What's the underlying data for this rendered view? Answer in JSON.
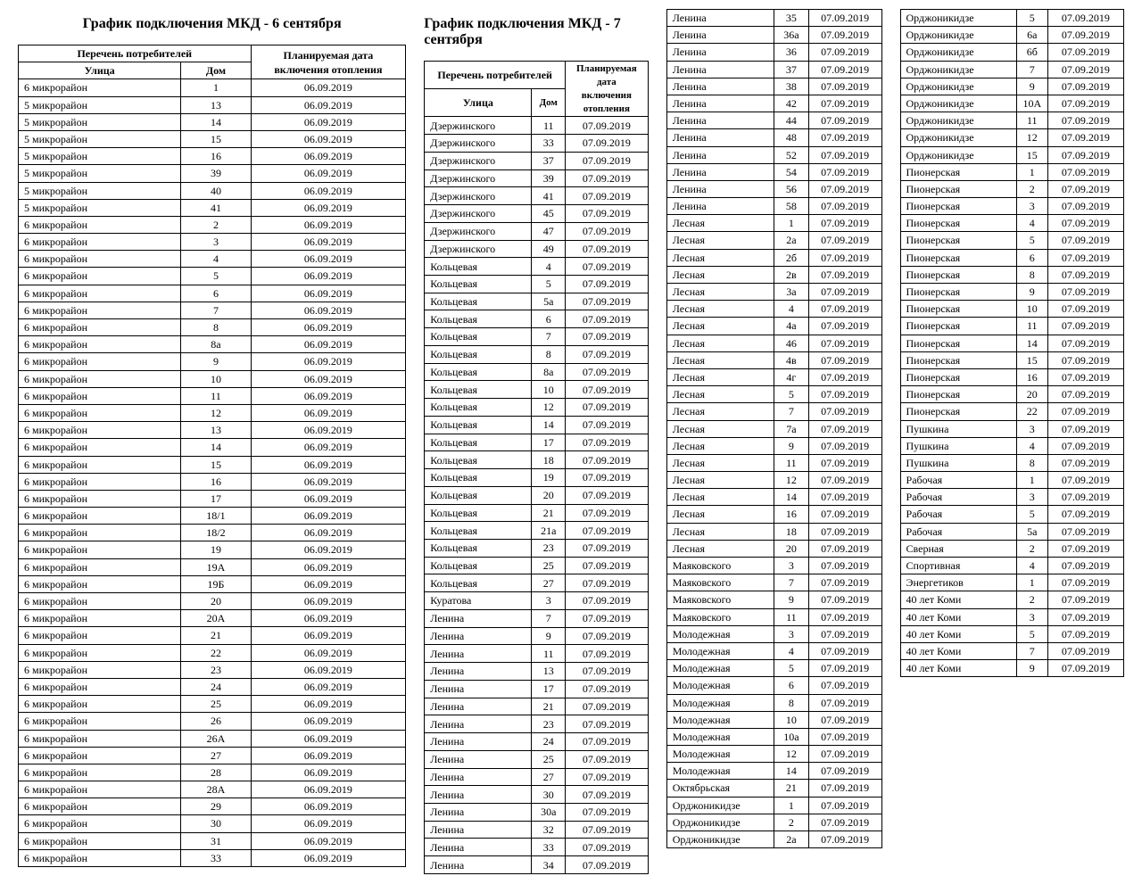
{
  "table1": {
    "title": "График подключения МКД - 6 сентября",
    "header_group": "Перечень потребителей",
    "header_date": "Планируемая дата включения отопления",
    "header_street": "Улица",
    "header_house": "Дом",
    "column_widths": [
      "42%",
      "18%",
      "40%"
    ],
    "title_fontsize": 16,
    "cell_fontsize": 12,
    "rows": [
      [
        "6 микрорайон",
        "1",
        "06.09.2019"
      ],
      [
        "5 микрорайон",
        "13",
        "06.09.2019"
      ],
      [
        "5 микрорайон",
        "14",
        "06.09.2019"
      ],
      [
        "5 микрорайон",
        "15",
        "06.09.2019"
      ],
      [
        "5 микрорайон",
        "16",
        "06.09.2019"
      ],
      [
        "5 микрорайон",
        "39",
        "06.09.2019"
      ],
      [
        "5 микрорайон",
        "40",
        "06.09.2019"
      ],
      [
        "5 микрорайон",
        "41",
        "06.09.2019"
      ],
      [
        "6 микрорайон",
        "2",
        "06.09.2019"
      ],
      [
        "6 микрорайон",
        "3",
        "06.09.2019"
      ],
      [
        "6 микрорайон",
        "4",
        "06.09.2019"
      ],
      [
        "6 микрорайон",
        "5",
        "06.09.2019"
      ],
      [
        "6 микрорайон",
        "6",
        "06.09.2019"
      ],
      [
        "6 микрорайон",
        "7",
        "06.09.2019"
      ],
      [
        "6 микрорайон",
        "8",
        "06.09.2019"
      ],
      [
        "6 микрорайон",
        "8а",
        "06.09.2019"
      ],
      [
        "6 микрорайон",
        "9",
        "06.09.2019"
      ],
      [
        "6 микрорайон",
        "10",
        "06.09.2019"
      ],
      [
        "6 микрорайон",
        "11",
        "06.09.2019"
      ],
      [
        "6 микрорайон",
        "12",
        "06.09.2019"
      ],
      [
        "6 микрорайон",
        "13",
        "06.09.2019"
      ],
      [
        "6 микрорайон",
        "14",
        "06.09.2019"
      ],
      [
        "6 микрорайон",
        "15",
        "06.09.2019"
      ],
      [
        "6 микрорайон",
        "16",
        "06.09.2019"
      ],
      [
        "6 микрорайон",
        "17",
        "06.09.2019"
      ],
      [
        "6 микрорайон",
        "18/1",
        "06.09.2019"
      ],
      [
        "6 микрорайон",
        "18/2",
        "06.09.2019"
      ],
      [
        "6 микрорайон",
        "19",
        "06.09.2019"
      ],
      [
        "6 микрорайон",
        "19А",
        "06.09.2019"
      ],
      [
        "6 микрорайон",
        "19Б",
        "06.09.2019"
      ],
      [
        "6 микрорайон",
        "20",
        "06.09.2019"
      ],
      [
        "6 микрорайон",
        "20А",
        "06.09.2019"
      ],
      [
        "6 микрорайон",
        "21",
        "06.09.2019"
      ],
      [
        "6 микрорайон",
        "22",
        "06.09.2019"
      ],
      [
        "6 микрорайон",
        "23",
        "06.09.2019"
      ],
      [
        "6 микрорайон",
        "24",
        "06.09.2019"
      ],
      [
        "6 микрорайон",
        "25",
        "06.09.2019"
      ],
      [
        "6 микрорайон",
        "26",
        "06.09.2019"
      ],
      [
        "6 микрорайон",
        "26А",
        "06.09.2019"
      ],
      [
        "6 микрорайон",
        "27",
        "06.09.2019"
      ],
      [
        "6 микрорайон",
        "28",
        "06.09.2019"
      ],
      [
        "6 микрорайон",
        "28А",
        "06.09.2019"
      ],
      [
        "6 микрорайон",
        "29",
        "06.09.2019"
      ],
      [
        "6 микрорайон",
        "30",
        "06.09.2019"
      ],
      [
        "6 микрорайон",
        "31",
        "06.09.2019"
      ],
      [
        "6 микрорайон",
        "33",
        "06.09.2019"
      ]
    ]
  },
  "table2": {
    "title": "График подключения МКД - 7 сентября",
    "header_group": "Перечень потребителей",
    "header_date": "Планируемая дата включения отопления",
    "header_street": "Улица",
    "header_house": "Дом",
    "column_widths": [
      "48%",
      "15%",
      "37%"
    ],
    "rows": [
      [
        "Дзержинского",
        "11",
        "07.09.2019"
      ],
      [
        "Дзержинского",
        "33",
        "07.09.2019"
      ],
      [
        "Дзержинского",
        "37",
        "07.09.2019"
      ],
      [
        "Дзержинского",
        "39",
        "07.09.2019"
      ],
      [
        "Дзержинского",
        "41",
        "07.09.2019"
      ],
      [
        "Дзержинского",
        "45",
        "07.09.2019"
      ],
      [
        "Дзержинского",
        "47",
        "07.09.2019"
      ],
      [
        "Дзержинского",
        "49",
        "07.09.2019"
      ],
      [
        "Кольцевая",
        "4",
        "07.09.2019"
      ],
      [
        "Кольцевая",
        "5",
        "07.09.2019"
      ],
      [
        "Кольцевая",
        "5а",
        "07.09.2019"
      ],
      [
        "Кольцевая",
        "6",
        "07.09.2019"
      ],
      [
        "Кольцевая",
        "7",
        "07.09.2019"
      ],
      [
        "Кольцевая",
        "8",
        "07.09.2019"
      ],
      [
        "Кольцевая",
        "8а",
        "07.09.2019"
      ],
      [
        "Кольцевая",
        "10",
        "07.09.2019"
      ],
      [
        "Кольцевая",
        "12",
        "07.09.2019"
      ],
      [
        "Кольцевая",
        "14",
        "07.09.2019"
      ],
      [
        "Кольцевая",
        "17",
        "07.09.2019"
      ],
      [
        "Кольцевая",
        "18",
        "07.09.2019"
      ],
      [
        "Кольцевая",
        "19",
        "07.09.2019"
      ],
      [
        "Кольцевая",
        "20",
        "07.09.2019"
      ],
      [
        "Кольцевая",
        "21",
        "07.09.2019"
      ],
      [
        "Кольцевая",
        "21а",
        "07.09.2019"
      ],
      [
        "Кольцевая",
        "23",
        "07.09.2019"
      ],
      [
        "Кольцевая",
        "25",
        "07.09.2019"
      ],
      [
        "Кольцевая",
        "27",
        "07.09.2019"
      ],
      [
        "Куратова",
        "3",
        "07.09.2019"
      ],
      [
        "Ленина",
        "7",
        "07.09.2019"
      ],
      [
        "Ленина",
        "9",
        "07.09.2019"
      ],
      [
        "Ленина",
        "11",
        "07.09.2019"
      ],
      [
        "Ленина",
        "13",
        "07.09.2019"
      ],
      [
        "Ленина",
        "17",
        "07.09.2019"
      ],
      [
        "Ленина",
        "21",
        "07.09.2019"
      ],
      [
        "Ленина",
        "23",
        "07.09.2019"
      ],
      [
        "Ленина",
        "24",
        "07.09.2019"
      ],
      [
        "Ленина",
        "25",
        "07.09.2019"
      ],
      [
        "Ленина",
        "27",
        "07.09.2019"
      ],
      [
        "Ленина",
        "30",
        "07.09.2019"
      ],
      [
        "Ленина",
        "30а",
        "07.09.2019"
      ],
      [
        "Ленина",
        "32",
        "07.09.2019"
      ],
      [
        "Ленина",
        "33",
        "07.09.2019"
      ],
      [
        "Ленина",
        "34",
        "07.09.2019"
      ]
    ]
  },
  "table3": {
    "column_widths": [
      "50%",
      "16%",
      "34%"
    ],
    "rows": [
      [
        "Ленина",
        "35",
        "07.09.2019"
      ],
      [
        "Ленина",
        "36а",
        "07.09.2019"
      ],
      [
        "Ленина",
        "36",
        "07.09.2019"
      ],
      [
        "Ленина",
        "37",
        "07.09.2019"
      ],
      [
        "Ленина",
        "38",
        "07.09.2019"
      ],
      [
        "Ленина",
        "42",
        "07.09.2019"
      ],
      [
        "Ленина",
        "44",
        "07.09.2019"
      ],
      [
        "Ленина",
        "48",
        "07.09.2019"
      ],
      [
        "Ленина",
        "52",
        "07.09.2019"
      ],
      [
        "Ленина",
        "54",
        "07.09.2019"
      ],
      [
        "Ленина",
        "56",
        "07.09.2019"
      ],
      [
        "Ленина",
        "58",
        "07.09.2019"
      ],
      [
        "Лесная",
        "1",
        "07.09.2019"
      ],
      [
        "Лесная",
        "2а",
        "07.09.2019"
      ],
      [
        "Лесная",
        "2б",
        "07.09.2019"
      ],
      [
        "Лесная",
        "2в",
        "07.09.2019"
      ],
      [
        "Лесная",
        "3а",
        "07.09.2019"
      ],
      [
        "Лесная",
        "4",
        "07.09.2019"
      ],
      [
        "Лесная",
        "4а",
        "07.09.2019"
      ],
      [
        "Лесная",
        "46",
        "07.09.2019"
      ],
      [
        "Лесная",
        "4в",
        "07.09.2019"
      ],
      [
        "Лесная",
        "4г",
        "07.09.2019"
      ],
      [
        "Лесная",
        "5",
        "07.09.2019"
      ],
      [
        "Лесная",
        "7",
        "07.09.2019"
      ],
      [
        "Лесная",
        "7а",
        "07.09.2019"
      ],
      [
        "Лесная",
        "9",
        "07.09.2019"
      ],
      [
        "Лесная",
        "11",
        "07.09.2019"
      ],
      [
        "Лесная",
        "12",
        "07.09.2019"
      ],
      [
        "Лесная",
        "14",
        "07.09.2019"
      ],
      [
        "Лесная",
        "16",
        "07.09.2019"
      ],
      [
        "Лесная",
        "18",
        "07.09.2019"
      ],
      [
        "Лесная",
        "20",
        "07.09.2019"
      ],
      [
        "Маяковского",
        "3",
        "07.09.2019"
      ],
      [
        "Маяковского",
        "7",
        "07.09.2019"
      ],
      [
        "Маяковского",
        "9",
        "07.09.2019"
      ],
      [
        "Маяковского",
        "11",
        "07.09.2019"
      ],
      [
        "Молодежная",
        "3",
        "07.09.2019"
      ],
      [
        "Молодежная",
        "4",
        "07.09.2019"
      ],
      [
        "Молодежная",
        "5",
        "07.09.2019"
      ],
      [
        "Молодежная",
        "6",
        "07.09.2019"
      ],
      [
        "Молодежная",
        "8",
        "07.09.2019"
      ],
      [
        "Молодежная",
        "10",
        "07.09.2019"
      ],
      [
        "Молодежная",
        "10а",
        "07.09.2019"
      ],
      [
        "Молодежная",
        "12",
        "07.09.2019"
      ],
      [
        "Молодежная",
        "14",
        "07.09.2019"
      ],
      [
        "Октябрьская",
        "21",
        "07.09.2019"
      ],
      [
        "Орджоникидзе",
        "1",
        "07.09.2019"
      ],
      [
        "Орджоникидзе",
        "2",
        "07.09.2019"
      ],
      [
        "Орджоникидзе",
        "2а",
        "07.09.2019"
      ]
    ]
  },
  "table4": {
    "column_widths": [
      "52%",
      "14%",
      "34%"
    ],
    "rows": [
      [
        "Орджоникидзе",
        "5",
        "07.09.2019"
      ],
      [
        "Орджоникидзе",
        "6а",
        "07.09.2019"
      ],
      [
        "Орджоникидзе",
        "6б",
        "07.09.2019"
      ],
      [
        "Орджоникидзе",
        "7",
        "07.09.2019"
      ],
      [
        "Орджоникидзе",
        "9",
        "07.09.2019"
      ],
      [
        "Орджоникидзе",
        "10А",
        "07.09.2019"
      ],
      [
        "Орджоникидзе",
        "11",
        "07.09.2019"
      ],
      [
        "Орджоникидзе",
        "12",
        "07.09.2019"
      ],
      [
        "Орджоникидзе",
        "15",
        "07.09.2019"
      ],
      [
        "Пионерская",
        "1",
        "07.09.2019"
      ],
      [
        "Пионерская",
        "2",
        "07.09.2019"
      ],
      [
        "Пионерская",
        "3",
        "07.09.2019"
      ],
      [
        "Пионерская",
        "4",
        "07.09.2019"
      ],
      [
        "Пионерская",
        "5",
        "07.09.2019"
      ],
      [
        "Пионерская",
        "6",
        "07.09.2019"
      ],
      [
        "Пионерская",
        "8",
        "07.09.2019"
      ],
      [
        "Пионерская",
        "9",
        "07.09.2019"
      ],
      [
        "Пионерская",
        "10",
        "07.09.2019"
      ],
      [
        "Пионерская",
        "11",
        "07.09.2019"
      ],
      [
        "Пионерская",
        "14",
        "07.09.2019"
      ],
      [
        "Пионерская",
        "15",
        "07.09.2019"
      ],
      [
        "Пионерская",
        "16",
        "07.09.2019"
      ],
      [
        "Пионерская",
        "20",
        "07.09.2019"
      ],
      [
        "Пионерская",
        "22",
        "07.09.2019"
      ],
      [
        "Пушкина",
        "3",
        "07.09.2019"
      ],
      [
        "Пушкина",
        "4",
        "07.09.2019"
      ],
      [
        "Пушкина",
        "8",
        "07.09.2019"
      ],
      [
        "Рабочая",
        "1",
        "07.09.2019"
      ],
      [
        "Рабочая",
        "3",
        "07.09.2019"
      ],
      [
        "Рабочая",
        "5",
        "07.09.2019"
      ],
      [
        "Рабочая",
        "5а",
        "07.09.2019"
      ],
      [
        "Сверная",
        "2",
        "07.09.2019"
      ],
      [
        "Спортивная",
        "4",
        "07.09.2019"
      ],
      [
        "Энергетиков",
        "1",
        "07.09.2019"
      ],
      [
        "40 лет Коми",
        "2",
        "07.09.2019"
      ],
      [
        "40 лет Коми",
        "3",
        "07.09.2019"
      ],
      [
        "40 лет Коми",
        "5",
        "07.09.2019"
      ],
      [
        "40 лет Коми",
        "7",
        "07.09.2019"
      ],
      [
        "40 лет Коми",
        "9",
        "07.09.2019"
      ]
    ]
  },
  "styling": {
    "font_family": "Times New Roman",
    "border_color": "#000000",
    "background_color": "#ffffff",
    "text_color": "#000000"
  }
}
